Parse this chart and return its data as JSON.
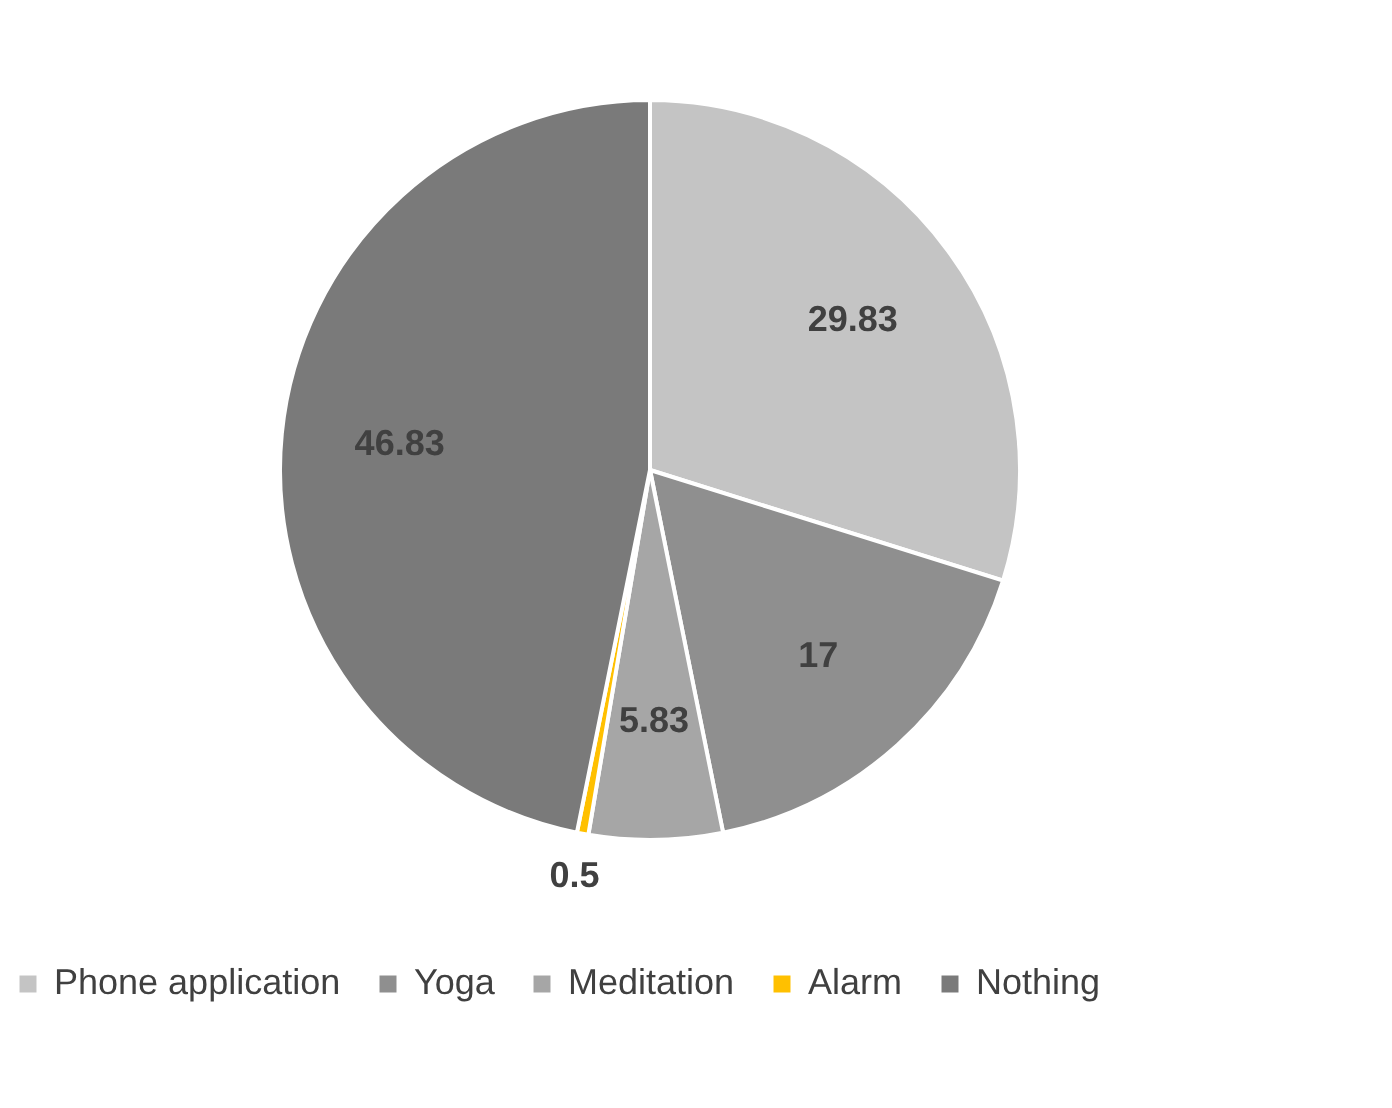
{
  "chart_data": {
    "type": "pie",
    "categories": [
      "Phone application",
      "Yoga",
      "Meditation",
      "Alarm",
      "Nothing"
    ],
    "values": [
      29.83,
      17,
      5.83,
      0.5,
      46.83
    ],
    "colors": [
      "#c4c4c4",
      "#8f8f8f",
      "#a6a6a6",
      "#ffc000",
      "#7a7a7a"
    ],
    "data_labels": true,
    "legend": "bottom"
  }
}
